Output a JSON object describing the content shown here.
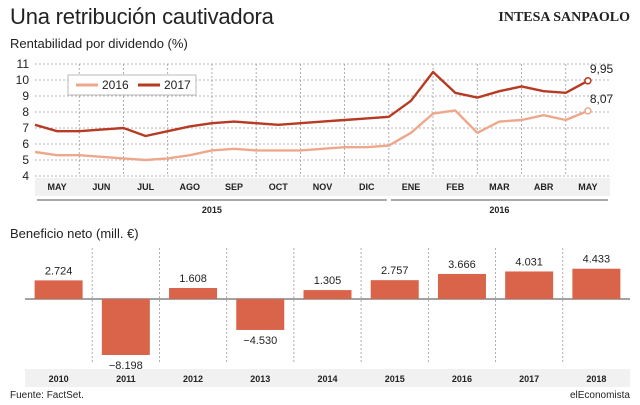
{
  "header": {
    "title": "Una retribución cautivadora",
    "brand": "INTESA SANPAOLO"
  },
  "footer": {
    "source": "Fuente: FactSet.",
    "publisher": "elEconomista"
  },
  "colors": {
    "s2016": "#EDA88C",
    "s2017": "#B73A22",
    "bar": "#D9644A"
  },
  "chart_data": [
    {
      "type": "line",
      "title": "Rentabilidad por dividendo (%)",
      "ylim": [
        4,
        11
      ],
      "yticks": [
        4,
        5,
        6,
        7,
        8,
        9,
        10,
        11
      ],
      "months": [
        "MAY",
        "JUN",
        "JUL",
        "AGO",
        "SEP",
        "OCT",
        "NOV",
        "DIC",
        "ENE",
        "FEB",
        "MAR",
        "ABR",
        "MAY"
      ],
      "years": [
        {
          "label": "2015",
          "from": 0,
          "to": 8
        },
        {
          "label": "2016",
          "from": 8,
          "to": 13
        }
      ],
      "last_values": {
        "2016": "8,07",
        "2017": "9,95"
      },
      "series": [
        {
          "name": "2016",
          "x": [
            0,
            0.5,
            1,
            1.5,
            2,
            2.5,
            3,
            3.5,
            4,
            4.5,
            5,
            5.5,
            6,
            6.5,
            7,
            7.5,
            8,
            8.5,
            9,
            9.5,
            10,
            10.5,
            11,
            11.5,
            12,
            12.5
          ],
          "y": [
            5.5,
            5.3,
            5.3,
            5.2,
            5.1,
            5.0,
            5.1,
            5.3,
            5.6,
            5.7,
            5.6,
            5.6,
            5.6,
            5.7,
            5.8,
            5.8,
            5.9,
            6.7,
            7.9,
            8.1,
            6.7,
            7.4,
            7.5,
            7.8,
            7.5,
            8.07
          ]
        },
        {
          "name": "2017",
          "x": [
            0,
            0.5,
            1,
            1.5,
            2,
            2.5,
            3,
            3.5,
            4,
            4.5,
            5,
            5.5,
            6,
            6.5,
            7,
            7.5,
            8,
            8.5,
            9,
            9.5,
            10,
            10.5,
            11,
            11.5,
            12,
            12.5
          ],
          "y": [
            7.2,
            6.8,
            6.8,
            6.9,
            7.0,
            6.5,
            6.8,
            7.1,
            7.3,
            7.4,
            7.3,
            7.2,
            7.3,
            7.4,
            7.5,
            7.6,
            7.7,
            8.7,
            10.5,
            9.2,
            8.9,
            9.3,
            9.6,
            9.3,
            9.2,
            9.95
          ]
        }
      ]
    },
    {
      "type": "bar",
      "title": "Beneficio neto (mill. €)",
      "categories": [
        "2010",
        "2011",
        "2012",
        "2013",
        "2014",
        "2015",
        "2016",
        "2017",
        "2018"
      ],
      "values": [
        2724,
        -8198,
        1608,
        -4530,
        1305,
        2757,
        3666,
        4031,
        4433
      ],
      "value_labels": [
        "2.724",
        "−8.198",
        "1.608",
        "−4.530",
        "1.305",
        "2.757",
        "3.666",
        "4.031",
        "4.433"
      ]
    }
  ]
}
